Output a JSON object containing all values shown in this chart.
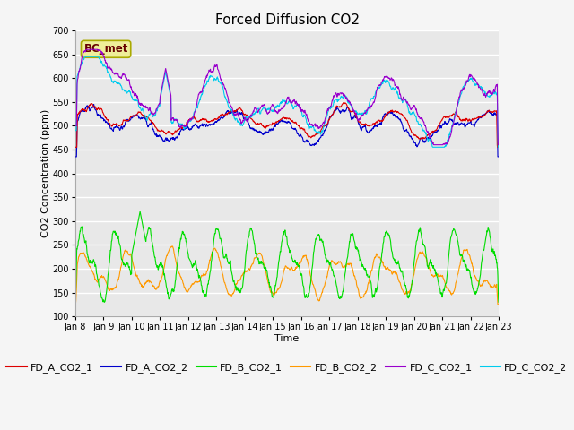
{
  "title": "Forced Diffusion CO2",
  "xlabel": "Time",
  "ylabel": "CO2 Concentration (ppm)",
  "ylim": [
    100,
    700
  ],
  "yticks": [
    100,
    150,
    200,
    250,
    300,
    350,
    400,
    450,
    500,
    550,
    600,
    650,
    700
  ],
  "xticklabels": [
    "Jan 8",
    "Jan 9",
    "Jan 10",
    "Jan 11",
    "Jan 12",
    "Jan 13",
    "Jan 14",
    "Jan 15",
    "Jan 16",
    "Jan 17",
    "Jan 18",
    "Jan 19",
    "Jan 20",
    "Jan 21",
    "Jan 22",
    "Jan 23"
  ],
  "series_colors": {
    "FD_A_CO2_1": "#dd0000",
    "FD_A_CO2_2": "#0000cc",
    "FD_B_CO2_1": "#00dd00",
    "FD_B_CO2_2": "#ff9900",
    "FD_C_CO2_1": "#9900cc",
    "FD_C_CO2_2": "#00ccee"
  },
  "bc_met_box_facecolor": "#eeee99",
  "bc_met_box_edgecolor": "#aaaa00",
  "bc_met_text_color": "#660000",
  "n_points": 1440,
  "axes_bg_color": "#e8e8e8",
  "grid_color": "#ffffff",
  "linewidth": 0.8,
  "title_fontsize": 11,
  "label_fontsize": 8,
  "tick_fontsize": 7,
  "legend_fontsize": 8,
  "fig_facecolor": "#f5f5f5"
}
